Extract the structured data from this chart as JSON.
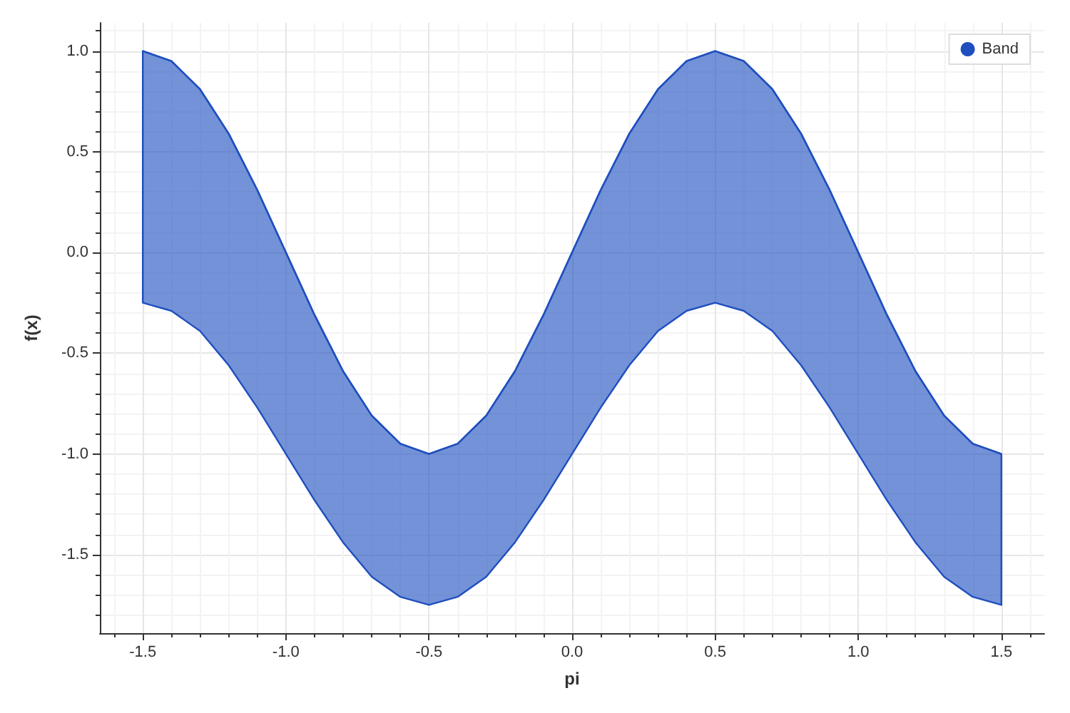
{
  "chart_data": {
    "type": "line",
    "xlabel": "pi",
    "ylabel": "f(x)",
    "x": [
      -1.5,
      -1.4,
      -1.3,
      -1.2,
      -1.1,
      -1.0,
      -0.9,
      -0.8,
      -0.7,
      -0.6,
      -0.5,
      -0.4,
      -0.3,
      -0.2,
      -0.1,
      0,
      0.1,
      0.2,
      0.3,
      0.4,
      0.5,
      0.6,
      0.7,
      0.8,
      0.9,
      1.0,
      1.1,
      1.2,
      1.3,
      1.4,
      1.5
    ],
    "series": [
      {
        "name": "Band",
        "color": "#1f4fbf",
        "values": [
          1,
          0.95,
          0.81,
          0.59,
          0.31,
          0,
          -0.31,
          -0.59,
          -0.81,
          -0.95,
          -1,
          -0.95,
          -0.81,
          -0.59,
          -0.31,
          0,
          0.31,
          0.59,
          0.81,
          0.95,
          1,
          0.95,
          0.81,
          0.59,
          0.31,
          0,
          -0.31,
          -0.59,
          -0.81,
          -0.95,
          -1
        ],
        "upper": [
          1,
          0.95,
          0.81,
          0.59,
          0.31,
          0,
          -0.31,
          -0.59,
          -0.81,
          -0.95,
          -1,
          -0.95,
          -0.81,
          -0.59,
          -0.31,
          0,
          0.31,
          0.59,
          0.81,
          0.95,
          1,
          0.95,
          0.81,
          0.59,
          0.31,
          0,
          -0.31,
          -0.59,
          -0.81,
          -0.95,
          -1
        ],
        "lower": [
          -0.25,
          -0.29,
          -0.39,
          -0.56,
          -0.77,
          -1,
          -1.23,
          -1.44,
          -1.61,
          -1.71,
          -1.75,
          -1.71,
          -1.61,
          -1.44,
          -1.23,
          -1,
          -0.77,
          -0.56,
          -0.39,
          -0.29,
          -0.25,
          -0.29,
          -0.39,
          -0.56,
          -0.77,
          -1,
          -1.23,
          -1.44,
          -1.61,
          -1.71,
          -1.75
        ]
      }
    ],
    "xlim": [
      -1.65,
      1.65
    ],
    "ylim": [
      -1.89,
      1.14
    ],
    "xticks": [
      -1.5,
      {
        "value": -1,
        "label": "-1.0"
      },
      -0.5,
      {
        "value": 0,
        "label": "0.0"
      },
      0.5,
      {
        "value": 1,
        "label": "1.0"
      },
      1.5
    ],
    "yticks": [
      -1.5,
      {
        "value": -1,
        "label": "-1.0"
      },
      -0.5,
      {
        "value": 0,
        "label": "0.0"
      },
      0.5,
      {
        "value": 1,
        "label": "1.0"
      }
    ],
    "grid": true,
    "legend": "top right",
    "marker": "none"
  }
}
